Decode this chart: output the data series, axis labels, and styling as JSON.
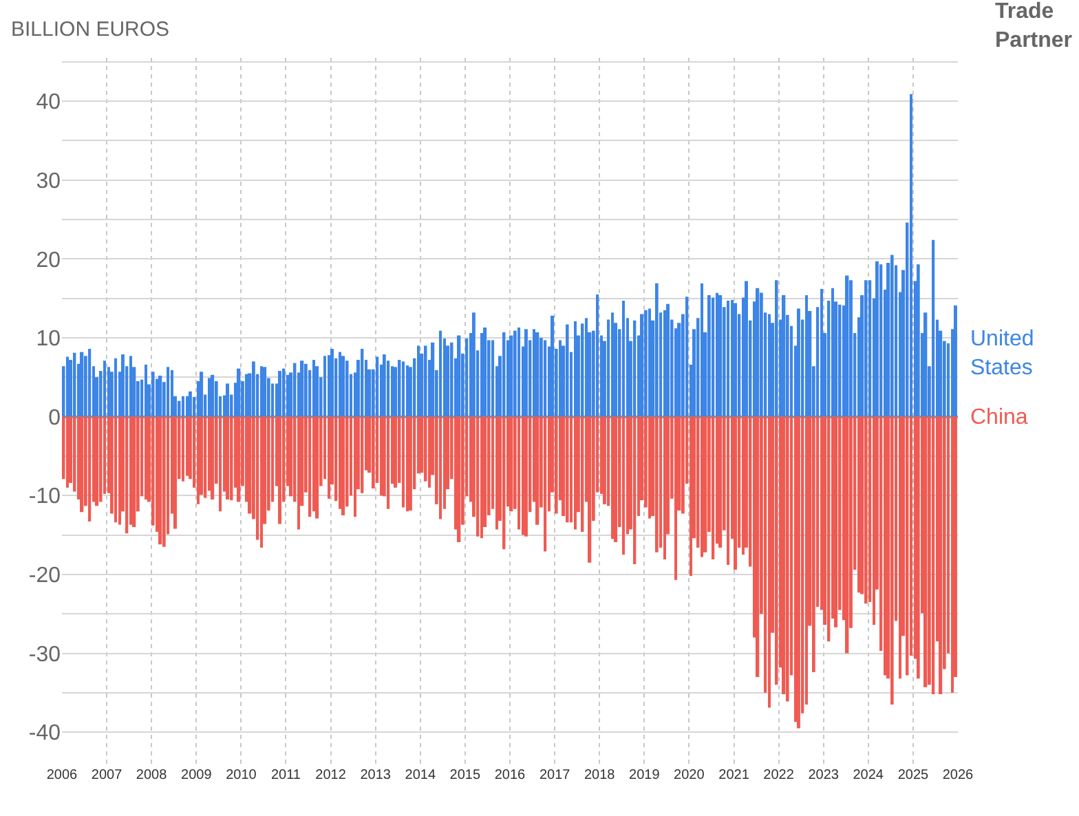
{
  "chart_data": {
    "type": "bar",
    "ylabel": "BILLION EUROS",
    "legend_title": "Trade Partner",
    "legend": "right",
    "grid": true,
    "x": [
      "2006-01",
      "2006-02",
      "2006-03",
      "2006-04",
      "2006-05",
      "2006-06",
      "2006-07",
      "2006-08",
      "2006-09",
      "2006-10",
      "2006-11",
      "2006-12",
      "2007-01",
      "2007-02",
      "2007-03",
      "2007-04",
      "2007-05",
      "2007-06",
      "2007-07",
      "2007-08",
      "2007-09",
      "2007-10",
      "2007-11",
      "2007-12",
      "2008-01",
      "2008-02",
      "2008-03",
      "2008-04",
      "2008-05",
      "2008-06",
      "2008-07",
      "2008-08",
      "2008-09",
      "2008-10",
      "2008-11",
      "2008-12",
      "2009-01",
      "2009-02",
      "2009-03",
      "2009-04",
      "2009-05",
      "2009-06",
      "2009-07",
      "2009-08",
      "2009-09",
      "2009-10",
      "2009-11",
      "2009-12",
      "2010-01",
      "2010-02",
      "2010-03",
      "2010-04",
      "2010-05",
      "2010-06",
      "2010-07",
      "2010-08",
      "2010-09",
      "2010-10",
      "2010-11",
      "2010-12",
      "2011-01",
      "2011-02",
      "2011-03",
      "2011-04",
      "2011-05",
      "2011-06",
      "2011-07",
      "2011-08",
      "2011-09",
      "2011-10",
      "2011-11",
      "2011-12",
      "2012-01",
      "2012-02",
      "2012-03",
      "2012-04",
      "2012-05",
      "2012-06",
      "2012-07",
      "2012-08",
      "2012-09",
      "2012-10",
      "2012-11",
      "2012-12",
      "2013-01",
      "2013-02",
      "2013-03",
      "2013-04",
      "2013-05",
      "2013-06",
      "2013-07",
      "2013-08",
      "2013-09",
      "2013-10",
      "2013-11",
      "2013-12",
      "2014-01",
      "2014-02",
      "2014-03",
      "2014-04",
      "2014-05",
      "2014-06",
      "2014-07",
      "2014-08",
      "2014-09",
      "2014-10",
      "2014-11",
      "2014-12",
      "2015-01",
      "2015-02",
      "2015-03",
      "2015-04",
      "2015-05",
      "2015-06",
      "2015-07",
      "2015-08",
      "2015-09",
      "2015-10",
      "2015-11",
      "2015-12",
      "2016-01",
      "2016-02",
      "2016-03",
      "2016-04",
      "2016-05",
      "2016-06",
      "2016-07",
      "2016-08",
      "2016-09",
      "2016-10",
      "2016-11",
      "2016-12",
      "2017-01",
      "2017-02",
      "2017-03",
      "2017-04",
      "2017-05",
      "2017-06",
      "2017-07",
      "2017-08",
      "2017-09",
      "2017-10",
      "2017-11",
      "2017-12",
      "2018-01",
      "2018-02",
      "2018-03",
      "2018-04",
      "2018-05",
      "2018-06",
      "2018-07",
      "2018-08",
      "2018-09",
      "2018-10",
      "2018-11",
      "2018-12",
      "2019-01",
      "2019-02",
      "2019-03",
      "2019-04",
      "2019-05",
      "2019-06",
      "2019-07",
      "2019-08",
      "2019-09",
      "2019-10",
      "2019-11",
      "2019-12",
      "2020-01",
      "2020-02",
      "2020-03",
      "2020-04",
      "2020-05",
      "2020-06",
      "2020-07",
      "2020-08",
      "2020-09",
      "2020-10",
      "2020-11",
      "2020-12",
      "2021-01",
      "2021-02",
      "2021-03",
      "2021-04",
      "2021-05",
      "2021-06",
      "2021-07",
      "2021-08",
      "2021-09",
      "2021-10",
      "2021-11",
      "2021-12",
      "2022-01",
      "2022-02",
      "2022-03",
      "2022-04",
      "2022-05",
      "2022-06",
      "2022-07",
      "2022-08",
      "2022-09",
      "2022-10",
      "2022-11",
      "2022-12",
      "2023-01",
      "2023-02",
      "2023-03",
      "2023-04",
      "2023-05",
      "2023-06",
      "2023-07",
      "2023-08",
      "2023-09",
      "2023-10",
      "2023-11",
      "2023-12",
      "2024-01",
      "2024-02",
      "2024-03",
      "2024-04",
      "2024-05",
      "2024-06",
      "2024-07",
      "2024-08",
      "2024-09",
      "2024-10",
      "2024-11",
      "2024-12",
      "2025-01",
      "2025-02",
      "2025-03",
      "2025-04",
      "2025-05",
      "2025-06",
      "2025-07",
      "2025-08",
      "2025-09",
      "2025-10",
      "2025-11",
      "2025-12"
    ],
    "xlim": [
      "2006-01-01",
      "2026-01-01"
    ],
    "xticks": [
      {
        "value": "2006-01-01",
        "label": "2006"
      },
      {
        "value": "2007-01-01",
        "label": "2007"
      },
      {
        "value": "2008-01-01",
        "label": "2008"
      },
      {
        "value": "2009-01-01",
        "label": "2009"
      },
      {
        "value": "2010-01-01",
        "label": "2010"
      },
      {
        "value": "2011-01-01",
        "label": "2011"
      },
      {
        "value": "2012-01-01",
        "label": "2012"
      },
      {
        "value": "2013-01-01",
        "label": "2013"
      },
      {
        "value": "2014-01-01",
        "label": "2014"
      },
      {
        "value": "2015-01-01",
        "label": "2015"
      },
      {
        "value": "2016-01-01",
        "label": "2016"
      },
      {
        "value": "2017-01-01",
        "label": "2017"
      },
      {
        "value": "2018-01-01",
        "label": "2018"
      },
      {
        "value": "2019-01-01",
        "label": "2019"
      },
      {
        "value": "2020-01-01",
        "label": "2020"
      },
      {
        "value": "2021-01-01",
        "label": "2021"
      },
      {
        "value": "2022-01-01",
        "label": "2022"
      },
      {
        "value": "2023-01-01",
        "label": "2023"
      },
      {
        "value": "2024-01-01",
        "label": "2024"
      },
      {
        "value": "2025-01-01",
        "label": "2025"
      },
      {
        "value": "2026-01-01",
        "label": "2026"
      }
    ],
    "ylim": [
      -44,
      45.5
    ],
    "stacked": true,
    "yticks": [
      -40,
      {
        "value": -35,
        "label": null
      },
      -30,
      {
        "value": -25,
        "label": null
      },
      -20,
      {
        "value": -15,
        "label": null
      },
      -10,
      {
        "value": -5,
        "label": null
      },
      0,
      {
        "value": 5,
        "label": null
      },
      10,
      {
        "value": 15,
        "label": null
      },
      20,
      {
        "value": 25,
        "label": null
      },
      30,
      {
        "value": 35,
        "label": null
      },
      40,
      {
        "value": 45,
        "label": null
      }
    ],
    "series": [
      {
        "name": "United States",
        "color": "#3d85e6",
        "values": [
          6.4,
          7.6,
          7.2,
          8.1,
          6.7,
          8.2,
          7.7,
          8.6,
          6.4,
          5.0,
          5.8,
          7.1,
          6.3,
          5.7,
          7.4,
          5.7,
          7.9,
          6.4,
          7.7,
          6.3,
          4.5,
          4.7,
          6.6,
          4.1,
          5.7,
          4.8,
          5.2,
          4.4,
          6.3,
          5.9,
          2.6,
          2.0,
          2.6,
          2.6,
          3.2,
          2.5,
          4.5,
          5.7,
          2.8,
          4.9,
          5.3,
          4.5,
          2.6,
          2.7,
          4.2,
          2.8,
          4.3,
          6.1,
          4.5,
          5.4,
          5.5,
          7.0,
          5.4,
          6.4,
          6.3,
          4.9,
          4.2,
          4.2,
          5.8,
          6.1,
          5.3,
          5.6,
          6.8,
          5.6,
          7.1,
          6.7,
          5.9,
          7.2,
          6.4,
          5.0,
          7.7,
          7.8,
          8.6,
          7.4,
          8.2,
          7.7,
          7.1,
          5.4,
          5.6,
          7.2,
          8.6,
          7.2,
          6.0,
          6.0,
          7.6,
          6.6,
          7.9,
          7.1,
          6.4,
          6.3,
          7.2,
          7.0,
          6.5,
          6.3,
          7.4,
          9.0,
          8.0,
          9.0,
          7.2,
          9.4,
          5.9,
          10.9,
          9.9,
          9.0,
          9.4,
          7.4,
          10.3,
          8.0,
          9.9,
          10.6,
          13.2,
          8.4,
          10.6,
          11.3,
          9.7,
          9.7,
          6.4,
          7.7,
          10.7,
          9.7,
          10.3,
          10.9,
          11.3,
          8.9,
          11.1,
          9.7,
          11.1,
          10.7,
          10.0,
          9.7,
          8.9,
          12.8,
          8.6,
          9.7,
          9.0,
          11.7,
          8.2,
          12.1,
          10.3,
          11.8,
          12.5,
          10.7,
          10.9,
          15.5,
          10.3,
          9.6,
          12.3,
          13.2,
          11.9,
          11.1,
          14.7,
          12.5,
          9.6,
          12.2,
          10.3,
          13.0,
          13.5,
          13.7,
          12.2,
          16.9,
          13.2,
          13.5,
          14.3,
          12.3,
          11.2,
          11.9,
          13.0,
          15.2,
          6.6,
          11.1,
          12.5,
          16.9,
          10.7,
          15.4,
          15.1,
          15.7,
          15.4,
          13.9,
          14.7,
          14.8,
          14.4,
          13.0,
          15.1,
          17.2,
          12.2,
          14.6,
          16.3,
          15.7,
          13.2,
          13.0,
          11.9,
          17.3,
          12.3,
          15.4,
          12.9,
          11.5,
          9.0,
          13.7,
          12.3,
          15.4,
          13.4,
          6.4,
          13.9,
          16.2,
          10.6,
          14.7,
          16.3,
          14.6,
          14.2,
          14.1,
          17.9,
          17.3,
          10.6,
          12.6,
          15.4,
          17.3,
          17.3,
          15.0,
          19.7,
          19.3,
          16.1,
          19.5,
          20.5,
          19.2,
          15.8,
          18.6,
          24.6,
          40.9,
          17.2,
          19.3,
          10.6,
          13.2,
          6.4,
          22.4,
          12.3,
          10.9,
          9.6,
          9.3,
          11.1,
          14.1
        ]
      },
      {
        "name": "China",
        "color": "#ef5b53",
        "values": [
          -7.9,
          -9.0,
          -8.4,
          -9.5,
          -10.5,
          -12.1,
          -11.3,
          -13.3,
          -10.8,
          -11.3,
          -10.8,
          -9.8,
          -9.7,
          -12.3,
          -13.4,
          -13.7,
          -12.0,
          -14.8,
          -13.7,
          -14.0,
          -12.0,
          -10.1,
          -10.5,
          -10.8,
          -13.8,
          -14.6,
          -16.2,
          -16.5,
          -14.9,
          -12.3,
          -14.2,
          -7.9,
          -8.2,
          -7.5,
          -7.9,
          -9.0,
          -11.1,
          -9.9,
          -10.3,
          -9.4,
          -10.5,
          -8.5,
          -12.0,
          -9.5,
          -10.5,
          -10.6,
          -9.0,
          -10.8,
          -8.8,
          -10.8,
          -12.3,
          -13.0,
          -15.6,
          -16.6,
          -13.6,
          -11.9,
          -10.8,
          -8.8,
          -13.6,
          -10.8,
          -8.8,
          -10.1,
          -10.8,
          -14.3,
          -11.3,
          -9.6,
          -12.7,
          -12.0,
          -12.9,
          -8.8,
          -7.9,
          -10.4,
          -8.6,
          -10.7,
          -11.7,
          -12.5,
          -11.4,
          -10.0,
          -12.7,
          -9.2,
          -9.7,
          -6.8,
          -7.1,
          -9.1,
          -8.4,
          -10.0,
          -10.1,
          -11.7,
          -8.5,
          -9.0,
          -8.4,
          -11.5,
          -12.0,
          -11.9,
          -9.2,
          -7.2,
          -7.1,
          -8.2,
          -9.0,
          -7.4,
          -11.1,
          -13.0,
          -11.7,
          -9.2,
          -7.9,
          -14.3,
          -15.9,
          -13.7,
          -10.1,
          -10.8,
          -12.7,
          -15.2,
          -15.4,
          -14.0,
          -12.5,
          -11.7,
          -14.3,
          -13.2,
          -16.8,
          -11.4,
          -12.0,
          -11.7,
          -14.3,
          -15.0,
          -15.2,
          -12.1,
          -10.8,
          -13.7,
          -11.5,
          -17.1,
          -12.0,
          -9.6,
          -12.3,
          -10.6,
          -12.6,
          -13.4,
          -13.4,
          -14.3,
          -12.1,
          -14.6,
          -10.8,
          -18.5,
          -13.2,
          -9.6,
          -9.8,
          -11.1,
          -11.3,
          -15.5,
          -15.9,
          -14.0,
          -17.5,
          -14.9,
          -14.3,
          -18.7,
          -12.6,
          -10.6,
          -11.5,
          -12.9,
          -12.6,
          -17.2,
          -16.6,
          -18.1,
          -14.9,
          -10.4,
          -20.7,
          -11.9,
          -12.3,
          -8.5,
          -20.2,
          -15.4,
          -16.6,
          -17.8,
          -17.2,
          -14.6,
          -18.1,
          -16.1,
          -16.6,
          -14.4,
          -18.8,
          -15.5,
          -19.4,
          -16.6,
          -17.5,
          -16.6,
          -19.0,
          -28,
          -33,
          -25,
          -35,
          -36.9,
          -27.4,
          -34.0,
          -31.8,
          -35.2,
          -36.1,
          -32.8,
          -38.7,
          -39.5,
          -37.6,
          -36.5,
          -26.5,
          -32.4,
          -24.1,
          -24.5,
          -26.4,
          -28.5,
          -25.6,
          -26.7,
          -24.5,
          -25.8,
          -30.0,
          -26.8,
          -19.4,
          -22.3,
          -22.5,
          -23.7,
          -23.5,
          -26.4,
          -21.9,
          -29.7,
          -32.8,
          -33.2,
          -36.5,
          -25.9,
          -33.2,
          -27.8,
          -32.8,
          -30.3,
          -30.7,
          -33.2,
          -24.9,
          -34.3,
          -34.0,
          -35.2,
          -28.5,
          -35.2,
          -32.0,
          -30,
          -35,
          -33
        ]
      }
    ]
  }
}
